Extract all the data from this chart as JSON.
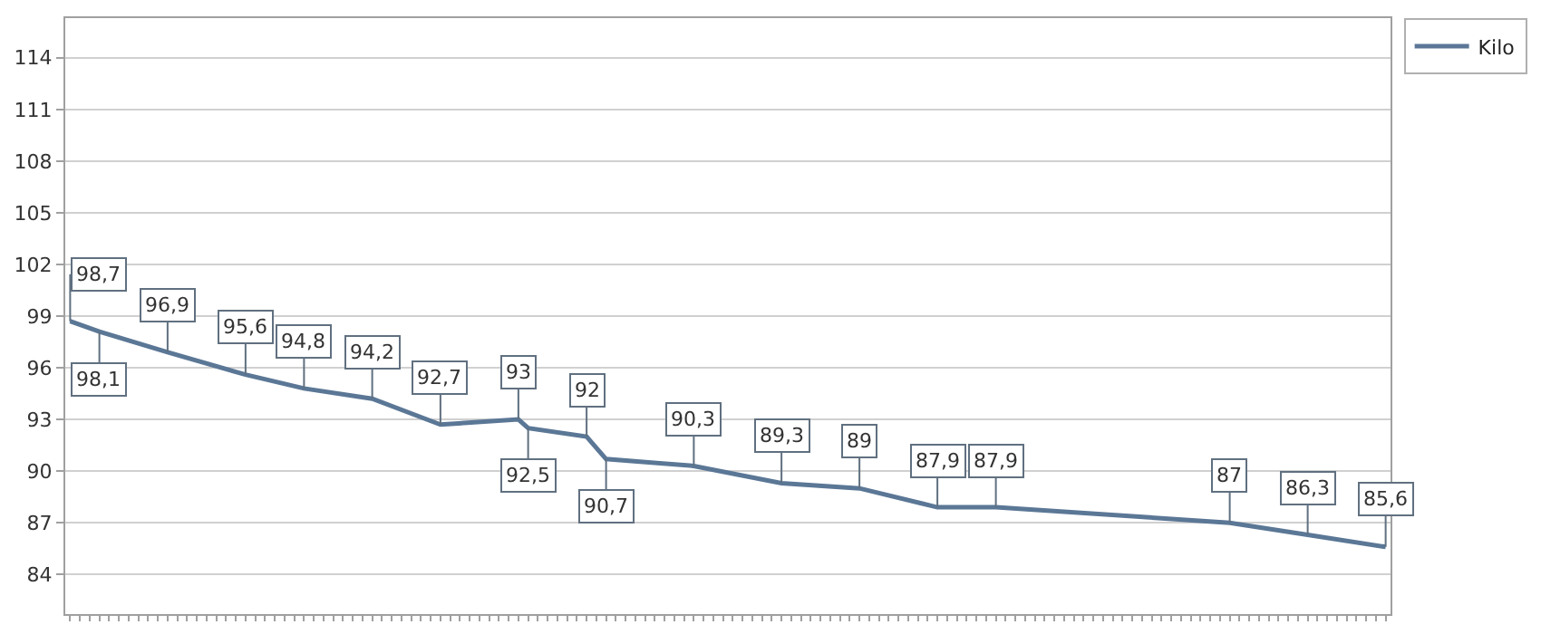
{
  "chart_data": {
    "type": "line",
    "categories": [
      null,
      null,
      null,
      null,
      null,
      null,
      null,
      null,
      null,
      null,
      null,
      null,
      null,
      null,
      null,
      null,
      null,
      null,
      null,
      null,
      null,
      null,
      null,
      null,
      null,
      null,
      null,
      null,
      null,
      null,
      null,
      null,
      null,
      null,
      null,
      null,
      null,
      null,
      null,
      null,
      null,
      null,
      null,
      null,
      null,
      null,
      null,
      null,
      null,
      null,
      null,
      null,
      null,
      null,
      null,
      null,
      null,
      null,
      null,
      null,
      null,
      null,
      null,
      null,
      null,
      null,
      null,
      null,
      null,
      null,
      null,
      null,
      null,
      null,
      null,
      null,
      null,
      null,
      null,
      null,
      null,
      null,
      null,
      null,
      null,
      null,
      null,
      null,
      null,
      null,
      null,
      null,
      null,
      null,
      null,
      null,
      null,
      null,
      null,
      null,
      null,
      null,
      null,
      null,
      null,
      null,
      null,
      null,
      null,
      null,
      null,
      null,
      null,
      null,
      null,
      null,
      null,
      null,
      null,
      null,
      null,
      null,
      null,
      null,
      null,
      null,
      null,
      null,
      null,
      null,
      null,
      null,
      null,
      null,
      null,
      null
    ],
    "series": [
      {
        "name": "Kilo",
        "color": "#5b7796",
        "values": [
          98.7,
          null,
          null,
          98.1,
          null,
          null,
          null,
          null,
          null,
          null,
          96.9,
          null,
          null,
          null,
          null,
          null,
          null,
          null,
          95.6,
          null,
          null,
          null,
          null,
          null,
          94.8,
          null,
          null,
          null,
          null,
          null,
          null,
          94.2,
          null,
          null,
          null,
          null,
          null,
          null,
          92.7,
          null,
          null,
          null,
          null,
          null,
          null,
          null,
          93,
          92.5,
          null,
          null,
          null,
          null,
          null,
          92,
          null,
          90.7,
          null,
          null,
          null,
          null,
          null,
          null,
          null,
          null,
          90.3,
          null,
          null,
          null,
          null,
          null,
          null,
          null,
          null,
          89.3,
          null,
          null,
          null,
          null,
          null,
          null,
          null,
          89,
          null,
          null,
          null,
          null,
          null,
          null,
          null,
          87.9,
          null,
          null,
          null,
          null,
          null,
          87.9,
          null,
          null,
          null,
          null,
          null,
          null,
          null,
          null,
          null,
          null,
          null,
          null,
          null,
          null,
          null,
          null,
          null,
          null,
          null,
          null,
          null,
          null,
          null,
          87,
          null,
          null,
          null,
          null,
          null,
          null,
          null,
          86.3,
          null,
          null,
          null,
          null,
          null,
          null,
          null,
          85.6
        ],
        "value_labels": [
          "98,7",
          null,
          null,
          "98,1",
          null,
          null,
          null,
          null,
          null,
          null,
          "96,9",
          null,
          null,
          null,
          null,
          null,
          null,
          null,
          "95,6",
          null,
          null,
          null,
          null,
          null,
          "94,8",
          null,
          null,
          null,
          null,
          null,
          null,
          "94,2",
          null,
          null,
          null,
          null,
          null,
          null,
          "92,7",
          null,
          null,
          null,
          null,
          null,
          null,
          null,
          "93",
          "92,5",
          null,
          null,
          null,
          null,
          null,
          "92",
          null,
          "90,7",
          null,
          null,
          null,
          null,
          null,
          null,
          null,
          null,
          "90,3",
          null,
          null,
          null,
          null,
          null,
          null,
          null,
          null,
          "89,3",
          null,
          null,
          null,
          null,
          null,
          null,
          null,
          "89",
          null,
          null,
          null,
          null,
          null,
          null,
          null,
          "87,9",
          null,
          null,
          null,
          null,
          null,
          "87,9",
          null,
          null,
          null,
          null,
          null,
          null,
          null,
          null,
          null,
          null,
          null,
          null,
          null,
          null,
          null,
          null,
          null,
          null,
          null,
          null,
          null,
          null,
          null,
          "87",
          null,
          null,
          null,
          null,
          null,
          null,
          null,
          "86,3",
          null,
          null,
          null,
          null,
          null,
          null,
          null,
          "85,6"
        ]
      }
    ],
    "ylim": [
      81.7,
      116.3
    ],
    "yticks": [
      84,
      87,
      90,
      93,
      96,
      99,
      102,
      105,
      108,
      111,
      114
    ],
    "tick_labels": "y",
    "grid": "y",
    "legend": "top right",
    "marker": "none",
    "line_style": "solid"
  }
}
